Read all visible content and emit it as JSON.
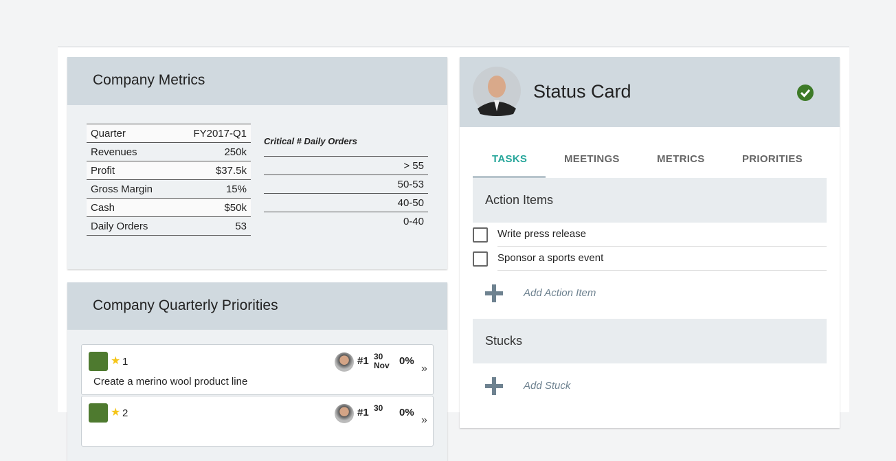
{
  "metrics": {
    "title": "Company Metrics",
    "rows": [
      [
        "Quarter",
        "FY2017-Q1"
      ],
      [
        "Revenues",
        "250k"
      ],
      [
        "Profit",
        "$37.5k"
      ],
      [
        "Gross Margin",
        "15%"
      ],
      [
        "Cash",
        "$50k"
      ],
      [
        "Daily Orders",
        "53"
      ]
    ],
    "legend": {
      "title": "Critical # Daily Orders",
      "rows": [
        {
          "label": "> 55",
          "color": "#2c4a1f"
        },
        {
          "label": "50-53",
          "color": "#4e7a2f"
        },
        {
          "label": "40-50",
          "color": "#b8862b"
        },
        {
          "label": "0-40",
          "color": "#8e2323"
        }
      ]
    }
  },
  "priorities": {
    "title": "Company Quarterly Priorities",
    "items": [
      {
        "number": "1",
        "rank": "#1",
        "day": "30",
        "month": "Nov",
        "percent": "0%",
        "text": "Create a merino wool product line",
        "color": "#4e7a2f"
      },
      {
        "number": "2",
        "rank": "#1",
        "day": "30",
        "percent": "0%",
        "color": "#4e7a2f"
      }
    ]
  },
  "status": {
    "title": "Status Card",
    "tabs": [
      "TASKS",
      "MEETINGS",
      "METRICS",
      "PRIORITIES"
    ],
    "sections": [
      {
        "title": "Action Items",
        "items": [
          "Write press release",
          "Sponsor a sports event"
        ],
        "add": "Add Action Item"
      },
      {
        "title": "Stucks",
        "items": [],
        "add": "Add Stuck"
      }
    ]
  }
}
